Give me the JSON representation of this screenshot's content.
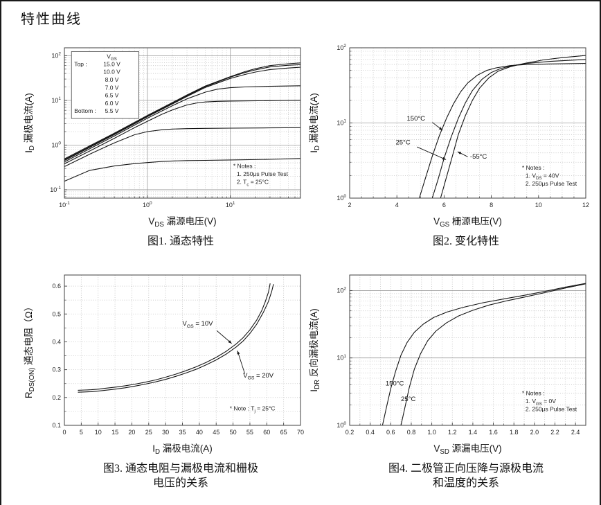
{
  "page": {
    "title": "特性曲线"
  },
  "colors": {
    "curve": "#141414",
    "grid_major": "#9b9b9b",
    "grid_minor": "#c4c4c4",
    "frame": "#3f3f3f",
    "text": "#222222"
  },
  "chart_data": [
    {
      "id": "fig1",
      "type": "line",
      "caption": "图1. 通态特性",
      "xlabel": "V_{DS} 漏源电压(V)",
      "ylabel": "I_{D} 漏极电流(A)",
      "xscale": "log",
      "yscale": "log",
      "xlim": [
        0.1,
        70
      ],
      "ylim": [
        0.065,
        150
      ],
      "xticks": {
        "vals": [
          0.1,
          1,
          10
        ],
        "labels": [
          "10^{-1}",
          "10^{0}",
          "10^{1}"
        ]
      },
      "yticks": {
        "vals": [
          0.1,
          1,
          10,
          100
        ],
        "labels": [
          "10^{-1}",
          "10^{0}",
          "10^{1}",
          "10^{2}"
        ]
      },
      "grid": {
        "xmajor": "solid",
        "xminor": "dot",
        "ymajor": "solid",
        "yminor": "dot"
      },
      "legend": {
        "title": "V_{GS}",
        "rows": [
          [
            "Top :",
            "15.0 V"
          ],
          [
            "",
            "10.0 V"
          ],
          [
            "",
            "8.0 V"
          ],
          [
            "",
            "7.0 V"
          ],
          [
            "",
            "6.5 V"
          ],
          [
            "",
            "6.0 V"
          ],
          [
            "Bottom :",
            "5.5 V"
          ]
        ]
      },
      "notes": {
        "fx": 0.715,
        "fy": 0.8,
        "lines": [
          "* Notes :",
          "1. 250μs Pulse Test",
          "2. T_{c} = 25°C"
        ]
      },
      "series": [
        {
          "name": "15.0 V",
          "x": [
            0.1,
            0.2,
            0.4,
            0.7,
            1,
            2,
            3,
            5,
            10,
            15,
            20,
            30,
            50,
            70
          ],
          "y": [
            0.49,
            0.95,
            1.85,
            3.22,
            4.6,
            8.9,
            13.2,
            21,
            34,
            44,
            51,
            60,
            66,
            69
          ]
        },
        {
          "name": "10.0 V",
          "x": [
            0.1,
            0.2,
            0.4,
            0.7,
            1,
            2,
            3,
            5,
            10,
            15,
            20,
            30,
            50,
            70
          ],
          "y": [
            0.47,
            0.91,
            1.78,
            3.1,
            4.45,
            8.6,
            12.7,
            20.3,
            33,
            42,
            48,
            56,
            61,
            63
          ]
        },
        {
          "name": "8.0 V",
          "x": [
            0.1,
            0.2,
            0.4,
            0.7,
            1,
            2,
            3,
            5,
            10,
            15,
            20,
            30,
            50,
            70
          ],
          "y": [
            0.45,
            0.88,
            1.72,
            3.0,
            4.3,
            8.3,
            12.2,
            19.5,
            31,
            38,
            43,
            49,
            53,
            55
          ]
        },
        {
          "name": "7.0 V",
          "x": [
            0.1,
            0.2,
            0.4,
            0.7,
            1,
            2,
            3,
            5,
            7,
            10,
            15,
            30,
            70
          ],
          "y": [
            0.42,
            0.82,
            1.6,
            2.8,
            4.0,
            7.6,
            10.8,
            15.3,
            17.8,
            19.2,
            20.0,
            20.6,
            21.2
          ]
        },
        {
          "name": "6.5 V",
          "x": [
            0.1,
            0.2,
            0.4,
            0.7,
            1,
            1.5,
            2,
            3,
            4,
            5,
            7,
            10,
            30,
            70
          ],
          "y": [
            0.38,
            0.73,
            1.42,
            2.45,
            3.4,
            4.9,
            6.1,
            7.9,
            8.8,
            9.2,
            9.5,
            9.65,
            9.85,
            10.1
          ]
        },
        {
          "name": "6.0 V",
          "x": [
            0.1,
            0.2,
            0.4,
            0.7,
            1,
            1.5,
            2,
            3,
            5,
            10,
            30,
            70
          ],
          "y": [
            0.33,
            0.62,
            1.12,
            1.7,
            2.0,
            2.2,
            2.28,
            2.33,
            2.36,
            2.39,
            2.42,
            2.45
          ]
        },
        {
          "name": "5.5 V",
          "x": [
            0.1,
            0.2,
            0.4,
            0.7,
            1,
            1.5,
            2,
            3,
            5,
            10,
            30,
            70
          ],
          "y": [
            0.155,
            0.27,
            0.34,
            0.385,
            0.405,
            0.43,
            0.44,
            0.45,
            0.455,
            0.465,
            0.48,
            0.5
          ]
        }
      ]
    },
    {
      "id": "fig2",
      "type": "line",
      "caption": "图2. 变化特性",
      "xlabel": "V_{GS} 栅源电压(V)",
      "ylabel": "I_{D} 漏极电流(A)",
      "xscale": "linear",
      "yscale": "log",
      "xlim": [
        2,
        12
      ],
      "ylim": [
        1,
        100
      ],
      "xminor": 0.5,
      "xticks": {
        "vals": [
          2,
          4,
          6,
          8,
          10,
          12
        ],
        "labels": [
          "2",
          "4",
          "6",
          "8",
          "10",
          "12"
        ]
      },
      "yticks": {
        "vals": [
          1,
          10,
          100
        ],
        "labels": [
          "10^{0}",
          "10^{1}",
          "10^{2}"
        ]
      },
      "grid": {
        "xmajor": "dot",
        "xminor": "dot",
        "ymajor": "solid",
        "yminor": "dot"
      },
      "notes": {
        "fx": 0.73,
        "fy": 0.81,
        "lines": [
          "* Notes :",
          "1. V_{DS} = 40V",
          "2. 250μs Pulse Test"
        ]
      },
      "annotations": [
        {
          "text": "150°C",
          "tx": 4.42,
          "ty": 10.8,
          "line": [
            5.5,
            10.2,
            5.93,
            8.0
          ]
        },
        {
          "text": "25°C",
          "tx": 3.95,
          "ty": 5.2,
          "line": [
            4.85,
            4.8,
            6.08,
            3.25
          ]
        },
        {
          "text": "-55°C",
          "tx": 7.1,
          "ty": 3.35,
          "line": [
            7.0,
            3.55,
            6.57,
            4.15
          ]
        }
      ],
      "series": [
        {
          "name": "150°C",
          "x": [
            4.95,
            5.2,
            5.5,
            5.8,
            6.1,
            6.4,
            6.7,
            7.0,
            7.4,
            7.8,
            8.2,
            8.8,
            9.5,
            10.5,
            12
          ],
          "y": [
            1,
            1.8,
            3.6,
            6.8,
            11.5,
            18,
            26,
            34,
            43,
            50,
            54,
            58,
            60,
            61,
            62
          ]
        },
        {
          "name": "25°C",
          "x": [
            5.5,
            5.75,
            6.0,
            6.3,
            6.6,
            6.9,
            7.2,
            7.6,
            8.0,
            8.4,
            8.9,
            9.5,
            10.5,
            12
          ],
          "y": [
            1,
            1.8,
            3.4,
            6.5,
            11.5,
            18.5,
            27,
            38,
            47,
            53,
            58,
            62,
            66,
            70
          ]
        },
        {
          "name": "-55°C",
          "x": [
            5.85,
            6.1,
            6.35,
            6.6,
            6.9,
            7.2,
            7.5,
            7.9,
            8.3,
            8.8,
            9.4,
            10.2,
            11,
            12
          ],
          "y": [
            1,
            1.9,
            3.6,
            7,
            12.5,
            20,
            29,
            40,
            49,
            56,
            62,
            69,
            74,
            79
          ]
        }
      ]
    },
    {
      "id": "fig3",
      "type": "line",
      "caption": "图3. 通态电阻与漏极电流和栅极\n电压的关系",
      "xlabel": "I_{D} 漏极电流(A)",
      "ylabel": "R_{DS(ON)} 通态电阻（Ω）",
      "xscale": "linear",
      "yscale": "linear",
      "xlim": [
        0,
        70
      ],
      "ylim": [
        0.1,
        0.64
      ],
      "yminor": 0.05,
      "xticks": {
        "vals": [
          0,
          5,
          10,
          15,
          20,
          25,
          30,
          35,
          40,
          45,
          50,
          55,
          60,
          65,
          70
        ],
        "labels": [
          "0",
          "5",
          "10",
          "15",
          "20",
          "25",
          "30",
          "35",
          "40",
          "45",
          "50",
          "55",
          "60",
          "65",
          "70"
        ]
      },
      "yticks": {
        "vals": [
          0.1,
          0.2,
          0.3,
          0.4,
          0.5,
          0.6
        ],
        "labels": [
          "0.1",
          "0.2",
          "0.3",
          "0.4",
          "0.5",
          "0.6"
        ]
      },
      "grid": {
        "xmajor": "dot",
        "xminor": "none",
        "ymajor": "dot",
        "yminor": "dot"
      },
      "notes": {
        "fx": 0.7,
        "fy": 0.9,
        "lines": [
          "* Note : T_{j} = 25°C"
        ]
      },
      "annotations": [
        {
          "text": "V_{GS} = 10V",
          "tx": 35.0,
          "ty": 0.458,
          "line": [
            45.2,
            0.44,
            49.6,
            0.394
          ]
        },
        {
          "text": "V_{GS} = 20V",
          "tx": 53.0,
          "ty": 0.272,
          "line": [
            53.5,
            0.285,
            51.3,
            0.368
          ]
        }
      ],
      "series": [
        {
          "name": "VGS=10V",
          "x": [
            4,
            6,
            8,
            10,
            12,
            15,
            18,
            21,
            24,
            27,
            30,
            33,
            36,
            39,
            42,
            45,
            48,
            51,
            53,
            55,
            57,
            58.5,
            59.5,
            60.5,
            61
          ],
          "y": [
            0.226,
            0.227,
            0.228,
            0.23,
            0.233,
            0.237,
            0.242,
            0.248,
            0.255,
            0.263,
            0.273,
            0.284,
            0.296,
            0.31,
            0.326,
            0.344,
            0.366,
            0.393,
            0.415,
            0.443,
            0.478,
            0.512,
            0.542,
            0.578,
            0.61
          ]
        },
        {
          "name": "VGS=20V",
          "x": [
            4,
            6,
            8,
            10,
            12,
            15,
            18,
            21,
            24,
            27,
            30,
            33,
            36,
            39,
            42,
            45,
            48,
            51,
            53,
            55,
            57,
            59,
            60.5,
            61.5,
            62
          ],
          "y": [
            0.219,
            0.22,
            0.221,
            0.223,
            0.226,
            0.23,
            0.235,
            0.241,
            0.248,
            0.256,
            0.265,
            0.276,
            0.288,
            0.301,
            0.317,
            0.335,
            0.356,
            0.382,
            0.403,
            0.43,
            0.463,
            0.506,
            0.545,
            0.583,
            0.607
          ]
        }
      ]
    },
    {
      "id": "fig4",
      "type": "line",
      "caption": "图4. 二极管正向压降与源极电流\n和温度的关系",
      "xlabel": "V_{SD} 源漏电压(V)",
      "ylabel": "I_{DR} 反向漏极电流(A)",
      "xscale": "linear",
      "yscale": "log",
      "xlim": [
        0.2,
        2.5
      ],
      "ylim": [
        1,
        170
      ],
      "xminor": 0.1,
      "xticks": {
        "vals": [
          0.2,
          0.4,
          0.6,
          0.8,
          1.0,
          1.2,
          1.4,
          1.6,
          1.8,
          2.0,
          2.2,
          2.4
        ],
        "labels": [
          "0.2",
          "0.4",
          "0.6",
          "0.8",
          "1.0",
          "1.2",
          "1.4",
          "1.6",
          "1.8",
          "2.0",
          "2.2",
          "2.4"
        ]
      },
      "yticks": {
        "vals": [
          1,
          10,
          100
        ],
        "labels": [
          "10^{0}",
          "10^{1}",
          "10^{2}"
        ]
      },
      "grid": {
        "xmajor": "dot",
        "xminor": "dot",
        "ymajor": "solid",
        "yminor": "dot"
      },
      "notes": {
        "fx": 0.73,
        "fy": 0.8,
        "lines": [
          "* Notes :",
          "1. V_{GS} = 0V",
          "2. 250μs Pulse Test"
        ]
      },
      "annotations": [
        {
          "text": "150°C",
          "tx": 0.55,
          "ty": 3.9
        },
        {
          "text": "25°C",
          "tx": 0.7,
          "ty": 2.3
        }
      ],
      "series": [
        {
          "name": "150°C",
          "x": [
            0.52,
            0.56,
            0.6,
            0.65,
            0.7,
            0.76,
            0.83,
            0.92,
            1.02,
            1.15,
            1.3,
            1.5,
            1.7,
            1.9,
            2.1,
            2.3,
            2.5
          ],
          "y": [
            1,
            1.9,
            3.5,
            6.5,
            11,
            17,
            24,
            32,
            40,
            48,
            56,
            66,
            75,
            85,
            97,
            112,
            128
          ]
        },
        {
          "name": "25°C",
          "x": [
            0.7,
            0.74,
            0.78,
            0.83,
            0.89,
            0.96,
            1.04,
            1.14,
            1.26,
            1.4,
            1.56,
            1.74,
            1.92,
            2.1,
            2.3,
            2.5
          ],
          "y": [
            1,
            1.9,
            3.6,
            6.8,
            11.5,
            18,
            25,
            33,
            42,
            51,
            61,
            71,
            81,
            93,
            109,
            126
          ]
        }
      ]
    }
  ]
}
